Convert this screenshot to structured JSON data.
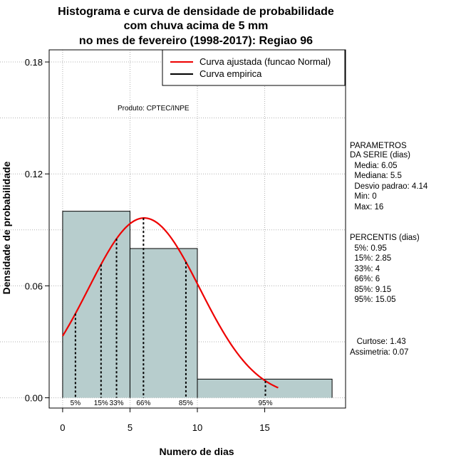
{
  "chart_data": {
    "type": "bar",
    "title_lines": [
      "Histograma e curva de densidade de probabilidade",
      "com chuva acima de 5 mm",
      "no mes de fevereiro (1998-2017): Regiao 96"
    ],
    "xlabel": "Numero de dias",
    "ylabel": "Densidade de probabilidade",
    "xlim": [
      -1,
      21
    ],
    "ylim": [
      -0.0055,
      0.1865
    ],
    "xticks": [
      0,
      5,
      10,
      15
    ],
    "yticks": [
      0.0,
      0.06,
      0.12,
      0.18
    ],
    "ytick_labels": [
      "0.00",
      "0.06",
      "0.12",
      "0.18"
    ],
    "grid": true,
    "bars": [
      {
        "x0": 0,
        "x1": 5,
        "density": 0.1
      },
      {
        "x0": 5,
        "x1": 10,
        "density": 0.08
      },
      {
        "x0": 10,
        "x1": 20,
        "density": 0.01
      }
    ],
    "bar_color": "#b7cdcd",
    "series": [
      {
        "name": "Curva ajustada (funcao Normal)",
        "color": "#ee0000",
        "mean": 6.05,
        "sd": 4.14,
        "x_range": [
          0,
          16
        ]
      },
      {
        "name": "Curva empirica",
        "color": "#000000"
      }
    ],
    "legend_position": "top-right",
    "percentiles": [
      {
        "label": "5%",
        "x": 0.95
      },
      {
        "label": "15%",
        "x": 2.85
      },
      {
        "label": "33%",
        "x": 4
      },
      {
        "label": "66%",
        "x": 6
      },
      {
        "label": "85%",
        "x": 9.15
      },
      {
        "label": "95%",
        "x": 15.05
      }
    ],
    "annotation": "Produto: CPTEC/INPE"
  },
  "stats_panel": {
    "params_lines": [
      "PARAMETROS",
      "DA SERIE (dias)",
      "  Media: 6.05",
      "  Mediana: 5.5",
      "  Desvio padrao: 4.14",
      "  Min: 0",
      "  Max: 16"
    ],
    "percentis_lines": [
      "PERCENTIS (dias)",
      "  5%: 0.95",
      "  15%: 2.85",
      "  33%: 4",
      "  66%: 6",
      "  85%: 9.15",
      "  95%: 15.05"
    ],
    "shape_lines": [
      "   Curtose: 1.43",
      "Assimetria: 0.07"
    ]
  }
}
